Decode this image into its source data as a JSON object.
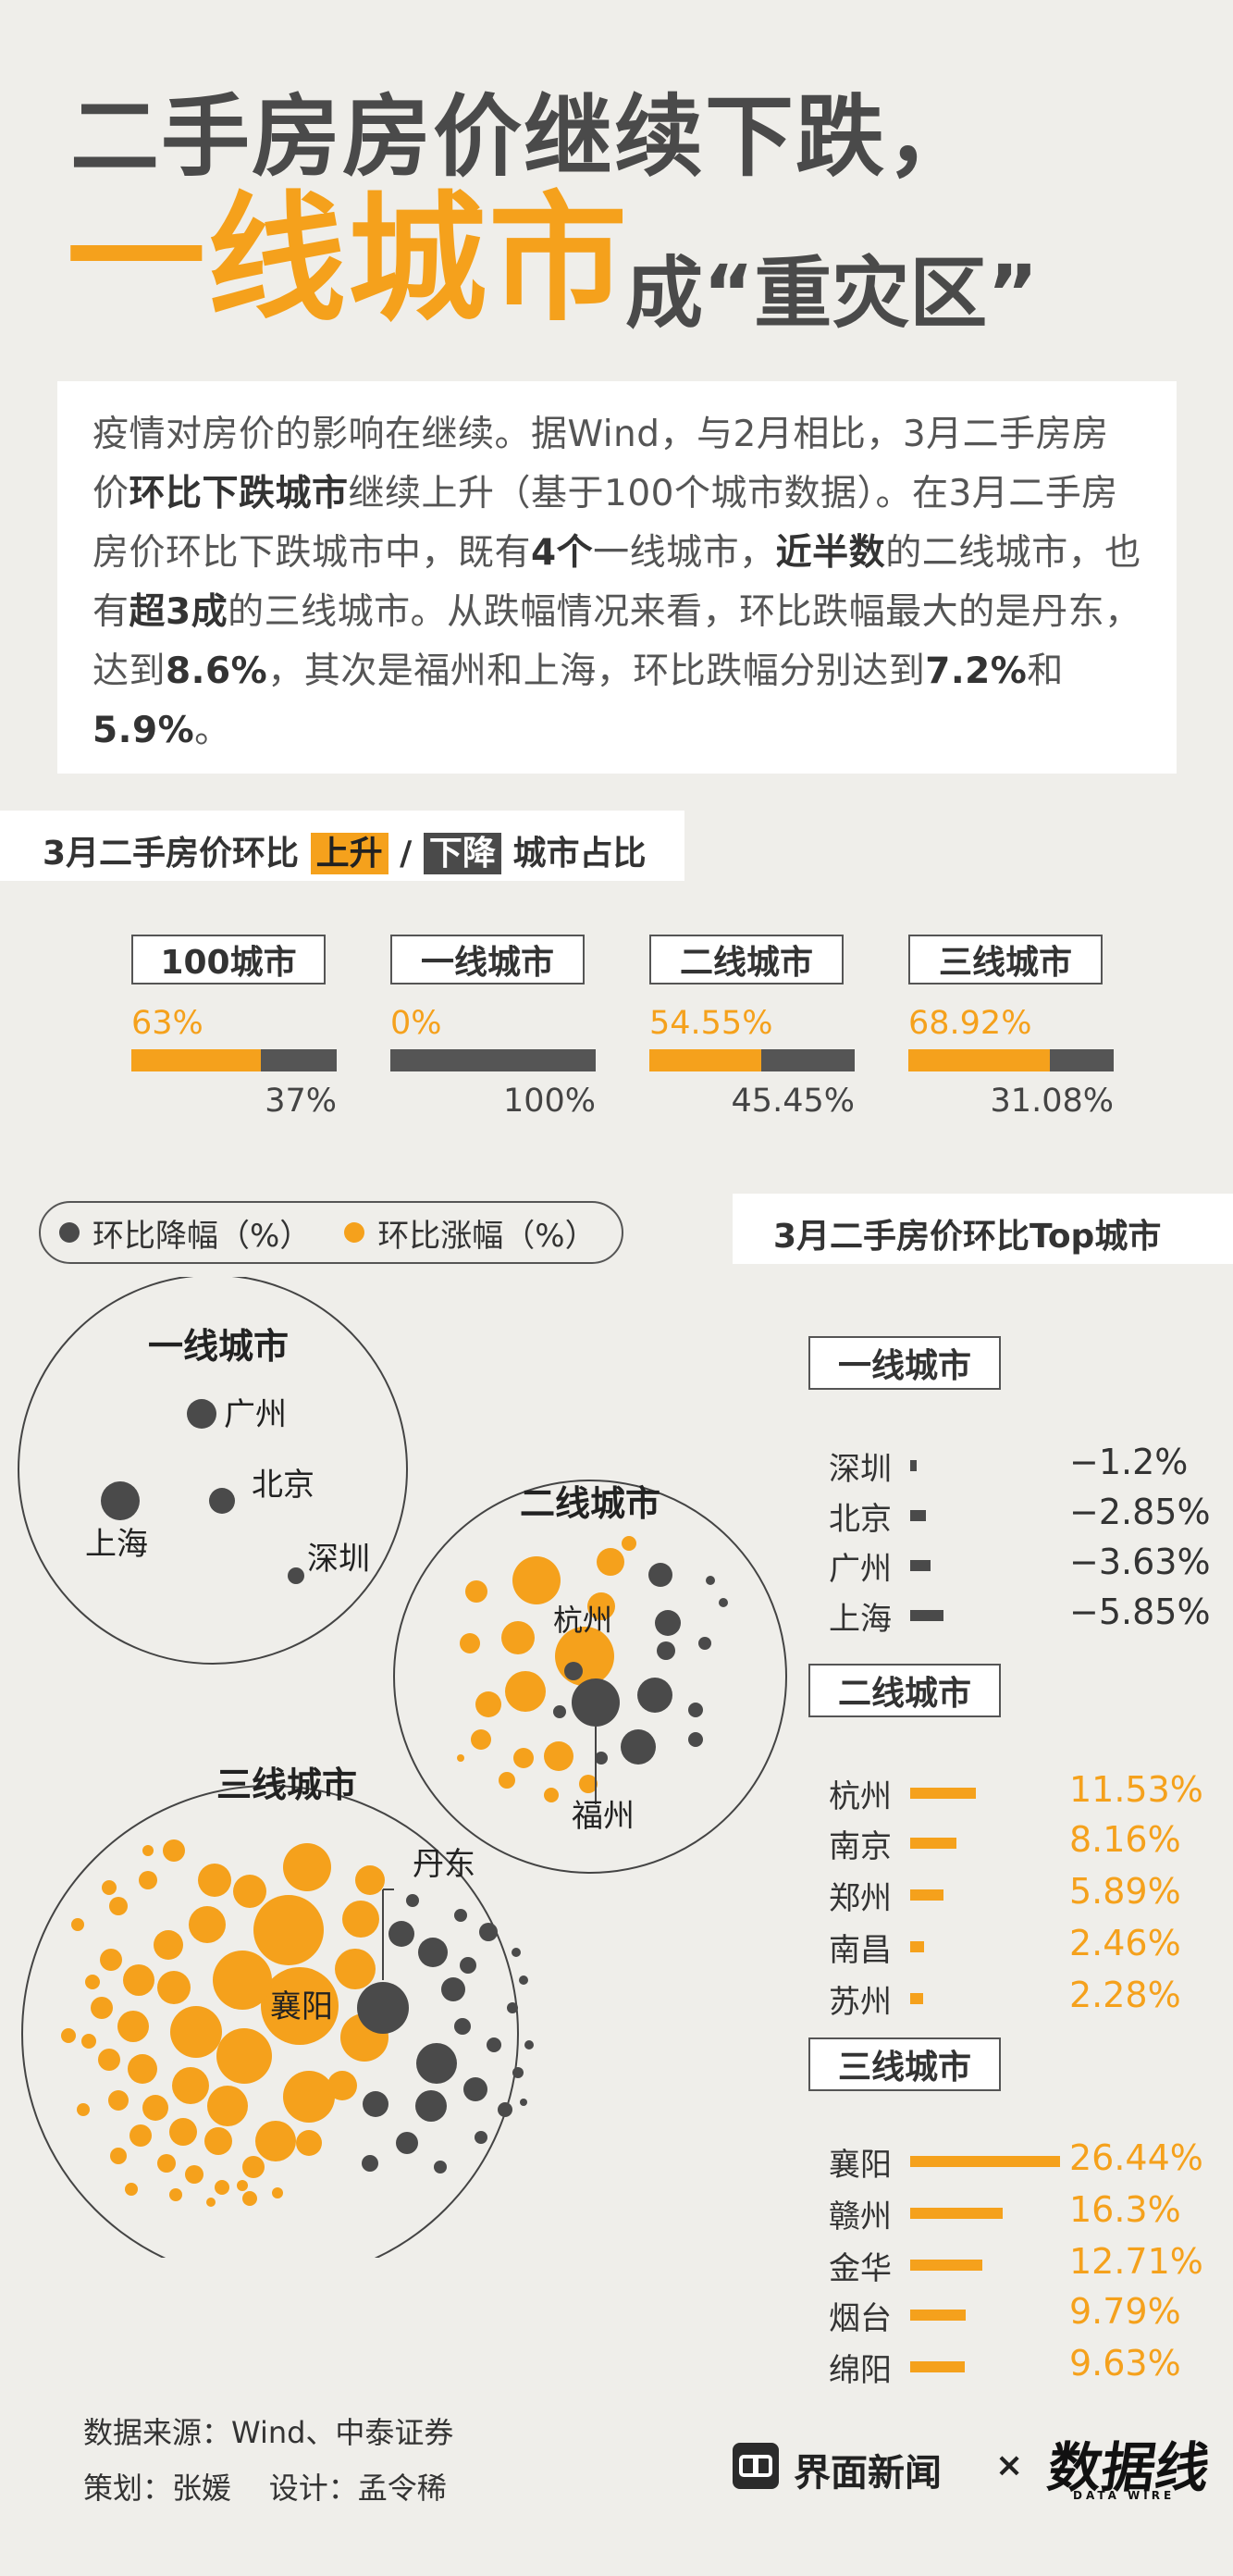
{
  "header": {
    "title_line1": "二手房房价继续下跌，",
    "title_line2_big": "一线城市",
    "title_line2_small": "成“重灾区”"
  },
  "intro": {
    "segments": [
      {
        "t": "疫情对房价的影响在继续。据Wind，与2月相比，3月二手房房价",
        "b": false
      },
      {
        "t": "环比下跌城市",
        "b": true
      },
      {
        "t": "继续上升（基于100个城市数据）。在3月二手房房价环比下跌城市中，既有",
        "b": false
      },
      {
        "t": "4个",
        "b": true
      },
      {
        "t": "一线城市，",
        "b": false
      },
      {
        "t": "近半数",
        "b": true
      },
      {
        "t": "的二线城市，也有",
        "b": false
      },
      {
        "t": "超3成",
        "b": true
      },
      {
        "t": "的三线城市。从跌幅情况来看，环比跌幅最大的是丹东，达到",
        "b": false
      },
      {
        "t": "8.6%",
        "b": true
      },
      {
        "t": "，其次是福州和上海，环比跌幅分别达到",
        "b": false
      },
      {
        "t": "7.2%",
        "b": true
      },
      {
        "t": "和",
        "b": false
      },
      {
        "t": "5.9%",
        "b": true
      },
      {
        "t": "。",
        "b": false
      }
    ]
  },
  "section1": {
    "prefix": "3月二手房价环比",
    "up_tag": "上升",
    "sep": "/",
    "down_tag": "下降",
    "suffix": "城市占比"
  },
  "legend": {
    "down_label": "环比降幅（%）",
    "up_label": "环比涨幅（%）",
    "down_color": "#4a4a4a",
    "up_color": "#f5a11c"
  },
  "section2": {
    "title": "3月二手房价环比Top城市"
  },
  "bubbles": {
    "tier1_title": "一线城市",
    "tier2_title": "二线城市",
    "tier3_title": "三线城市",
    "tier1_cities": [
      "广州",
      "北京",
      "上海",
      "深圳"
    ],
    "tier2_cities": [
      "杭州",
      "福州"
    ],
    "tier3_cities": [
      "丹东",
      "襄阳"
    ]
  },
  "chart_data": [
    {
      "type": "bar",
      "title": "3月二手房价环比上升/下降城市占比",
      "categories": [
        "100城市",
        "一线城市",
        "二线城市",
        "三线城市"
      ],
      "series": [
        {
          "name": "上升",
          "values": [
            63,
            0,
            54.55,
            68.92
          ],
          "labels": [
            "63%",
            "0%",
            "54.55%",
            "68.92%"
          ]
        },
        {
          "name": "下降",
          "values": [
            37,
            100,
            45.45,
            31.08
          ],
          "labels": [
            "37%",
            "100%",
            "45.45%",
            "31.08%"
          ]
        }
      ]
    },
    {
      "type": "bar",
      "title": "3月二手房价环比Top城市",
      "groups": [
        {
          "tier": "一线城市",
          "direction": "down",
          "categories": [
            "深圳",
            "北京",
            "广州",
            "上海"
          ],
          "values": [
            -1.2,
            -2.85,
            -3.63,
            -5.85
          ],
          "labels": [
            "−1.2%",
            "−2.85%",
            "−3.63%",
            "−5.85%"
          ]
        },
        {
          "tier": "二线城市",
          "direction": "up",
          "categories": [
            "杭州",
            "南京",
            "郑州",
            "南昌",
            "苏州"
          ],
          "values": [
            11.53,
            8.16,
            5.89,
            2.46,
            2.28
          ],
          "labels": [
            "11.53%",
            "8.16%",
            "5.89%",
            "2.46%",
            "2.28%"
          ]
        },
        {
          "tier": "三线城市",
          "direction": "up",
          "categories": [
            "襄阳",
            "赣州",
            "金华",
            "烟台",
            "绵阳"
          ],
          "values": [
            26.44,
            16.3,
            12.71,
            9.79,
            9.63
          ],
          "labels": [
            "26.44%",
            "16.3%",
            "12.71%",
            "9.79%",
            "9.63%"
          ]
        }
      ]
    }
  ],
  "footer": {
    "source": "数据来源：Wind、中泰证券",
    "credits": "策划：张媛    设计：孟令稀",
    "brand1": "界面新闻",
    "times": "×",
    "brand2": "数据线",
    "brand2_sub": "DATA WIRE"
  },
  "watermark": "数据线"
}
